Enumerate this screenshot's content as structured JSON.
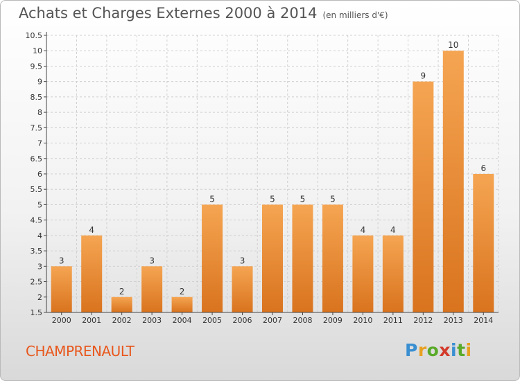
{
  "title": "Achats et Charges Externes 2000 à 2014",
  "unit_note": "(en milliers d'€)",
  "commune": "CHAMPRENAULT",
  "logo": {
    "text": "Proxiti",
    "letters": [
      "P",
      "r",
      "o",
      "x",
      "i",
      "t",
      "i"
    ],
    "letter_colors": [
      "#3a8fd1",
      "#e8a020",
      "#5aaa2a",
      "#d33a2a",
      "#3a8fd1",
      "#5aaa2a",
      "#e8a020"
    ]
  },
  "colors": {
    "bar_light": "#f5a552",
    "bar_dark": "#d9731e",
    "grid": "#cfcfcf",
    "axis": "#444444"
  },
  "chart_data": {
    "type": "bar",
    "categories": [
      "2000",
      "2001",
      "2002",
      "2003",
      "2004",
      "2005",
      "2006",
      "2007",
      "2008",
      "2009",
      "2010",
      "2011",
      "2012",
      "2013",
      "2014"
    ],
    "values": [
      3,
      4,
      2,
      3,
      2,
      5,
      3,
      5,
      5,
      5,
      4,
      4,
      9,
      10,
      6
    ],
    "value_labels": [
      "3",
      "4",
      "2",
      "3",
      "2",
      "5",
      "3",
      "5",
      "5",
      "5",
      "4",
      "4",
      "9",
      "10",
      "6"
    ],
    "yticks": [
      "1.5",
      "2",
      "2.5",
      "3",
      "3.5",
      "4",
      "4.5",
      "5",
      "5.5",
      "6",
      "6.5",
      "7",
      "7.5",
      "8",
      "8.5",
      "9",
      "9.5",
      "10",
      "10.5"
    ],
    "ylim": [
      1.5,
      10.5
    ],
    "grid": true,
    "xlabel": "",
    "ylabel": ""
  }
}
